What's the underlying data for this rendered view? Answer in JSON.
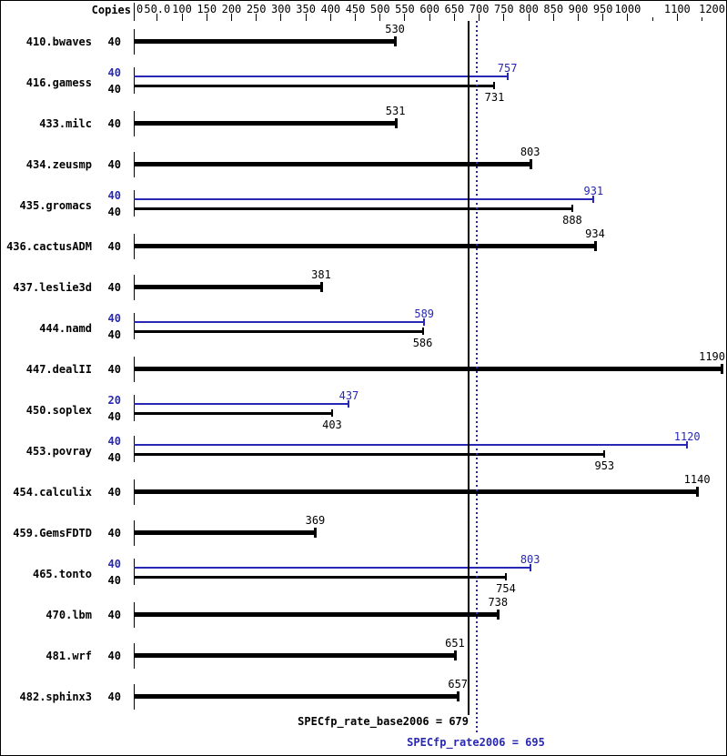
{
  "title_area": {
    "copies_header": "Copies"
  },
  "colors": {
    "base": "#000000",
    "peak": "#2828b4",
    "background": "#ffffff"
  },
  "axis": {
    "ticks": [
      {
        "v": 0,
        "label": "0"
      },
      {
        "v": 50,
        "label": "50.0"
      },
      {
        "v": 100,
        "label": "100"
      },
      {
        "v": 150,
        "label": "150"
      },
      {
        "v": 200,
        "label": "200"
      },
      {
        "v": 250,
        "label": "250"
      },
      {
        "v": 300,
        "label": "300"
      },
      {
        "v": 350,
        "label": "350"
      },
      {
        "v": 400,
        "label": "400"
      },
      {
        "v": 450,
        "label": "450"
      },
      {
        "v": 500,
        "label": "500"
      },
      {
        "v": 550,
        "label": "550"
      },
      {
        "v": 600,
        "label": "600"
      },
      {
        "v": 650,
        "label": "650"
      },
      {
        "v": 700,
        "label": "700"
      },
      {
        "v": 750,
        "label": "750"
      },
      {
        "v": 800,
        "label": "800"
      },
      {
        "v": 850,
        "label": "850"
      },
      {
        "v": 900,
        "label": "900"
      },
      {
        "v": 950,
        "label": "950"
      },
      {
        "v": 1000,
        "label": "1000"
      },
      {
        "v": 1050,
        "label": ""
      },
      {
        "v": 1100,
        "label": "1100"
      },
      {
        "v": 1150,
        "label": ""
      },
      {
        "v": 1200,
        "label": "1200"
      }
    ]
  },
  "rows": [
    {
      "name": "410.bwaves",
      "type": "single",
      "base": {
        "copies": "40",
        "value": 530
      }
    },
    {
      "name": "416.gamess",
      "type": "double",
      "peak": {
        "copies": "40",
        "value": 757
      },
      "base": {
        "copies": "40",
        "value": 731
      }
    },
    {
      "name": "433.milc",
      "type": "single",
      "base": {
        "copies": "40",
        "value": 531
      }
    },
    {
      "name": "434.zeusmp",
      "type": "single",
      "base": {
        "copies": "40",
        "value": 803
      }
    },
    {
      "name": "435.gromacs",
      "type": "double",
      "peak": {
        "copies": "40",
        "value": 931
      },
      "base": {
        "copies": "40",
        "value": 888
      }
    },
    {
      "name": "436.cactusADM",
      "type": "single",
      "base": {
        "copies": "40",
        "value": 934
      }
    },
    {
      "name": "437.leslie3d",
      "type": "single",
      "base": {
        "copies": "40",
        "value": 381
      }
    },
    {
      "name": "444.namd",
      "type": "double",
      "peak": {
        "copies": "40",
        "value": 589
      },
      "base": {
        "copies": "40",
        "value": 586
      }
    },
    {
      "name": "447.dealII",
      "type": "single",
      "base": {
        "copies": "40",
        "value": 1190
      }
    },
    {
      "name": "450.soplex",
      "type": "double",
      "peak": {
        "copies": "20",
        "value": 437
      },
      "base": {
        "copies": "40",
        "value": 403
      }
    },
    {
      "name": "453.povray",
      "type": "double",
      "peak": {
        "copies": "40",
        "value": 1120
      },
      "base": {
        "copies": "40",
        "value": 953
      }
    },
    {
      "name": "454.calculix",
      "type": "single",
      "base": {
        "copies": "40",
        "value": 1140
      }
    },
    {
      "name": "459.GemsFDTD",
      "type": "single",
      "base": {
        "copies": "40",
        "value": 369
      }
    },
    {
      "name": "465.tonto",
      "type": "double",
      "peak": {
        "copies": "40",
        "value": 803
      },
      "base": {
        "copies": "40",
        "value": 754
      }
    },
    {
      "name": "470.lbm",
      "type": "single",
      "base": {
        "copies": "40",
        "value": 738
      }
    },
    {
      "name": "481.wrf",
      "type": "single",
      "base": {
        "copies": "40",
        "value": 651
      }
    },
    {
      "name": "482.sphinx3",
      "type": "single",
      "base": {
        "copies": "40",
        "value": 657
      }
    }
  ],
  "footer": {
    "base_label": "SPECfp_rate_base2006 = 679",
    "base_value": 679,
    "peak_label": "SPECfp_rate2006 = 695",
    "peak_value": 695
  },
  "chart_data": {
    "type": "bar",
    "orientation": "horizontal",
    "title": "",
    "xlabel": "",
    "ylabel": "Copies",
    "xlim": [
      0,
      1200
    ],
    "x_ticks": [
      0,
      50,
      100,
      150,
      200,
      250,
      300,
      350,
      400,
      450,
      500,
      550,
      600,
      650,
      700,
      750,
      800,
      850,
      900,
      950,
      1000,
      1050,
      1100,
      1150,
      1200
    ],
    "grid": false,
    "legend_position": "none",
    "categories": [
      "410.bwaves",
      "416.gamess",
      "433.milc",
      "434.zeusmp",
      "435.gromacs",
      "436.cactusADM",
      "437.leslie3d",
      "444.namd",
      "447.dealII",
      "450.soplex",
      "453.povray",
      "454.calculix",
      "459.GemsFDTD",
      "465.tonto",
      "470.lbm",
      "481.wrf",
      "482.sphinx3"
    ],
    "series": [
      {
        "name": "SPECfp_rate2006 (peak)",
        "color": "#2828b4",
        "copies": [
          null,
          40,
          null,
          null,
          40,
          null,
          null,
          40,
          null,
          20,
          40,
          null,
          null,
          40,
          null,
          null,
          null
        ],
        "values": [
          null,
          757,
          null,
          null,
          931,
          null,
          null,
          589,
          null,
          437,
          1120,
          null,
          null,
          803,
          null,
          null,
          null
        ]
      },
      {
        "name": "SPECfp_rate_base2006 (base)",
        "color": "#000000",
        "copies": [
          40,
          40,
          40,
          40,
          40,
          40,
          40,
          40,
          40,
          40,
          40,
          40,
          40,
          40,
          40,
          40,
          40
        ],
        "values": [
          530,
          731,
          531,
          803,
          888,
          934,
          381,
          586,
          1190,
          403,
          953,
          1140,
          369,
          754,
          738,
          651,
          657
        ]
      }
    ],
    "reference_lines": [
      {
        "label": "SPECfp_rate_base2006 = 679",
        "value": 679,
        "style": "solid",
        "color": "#000000"
      },
      {
        "label": "SPECfp_rate2006 = 695",
        "value": 695,
        "style": "dotted",
        "color": "#2828b4"
      }
    ]
  }
}
